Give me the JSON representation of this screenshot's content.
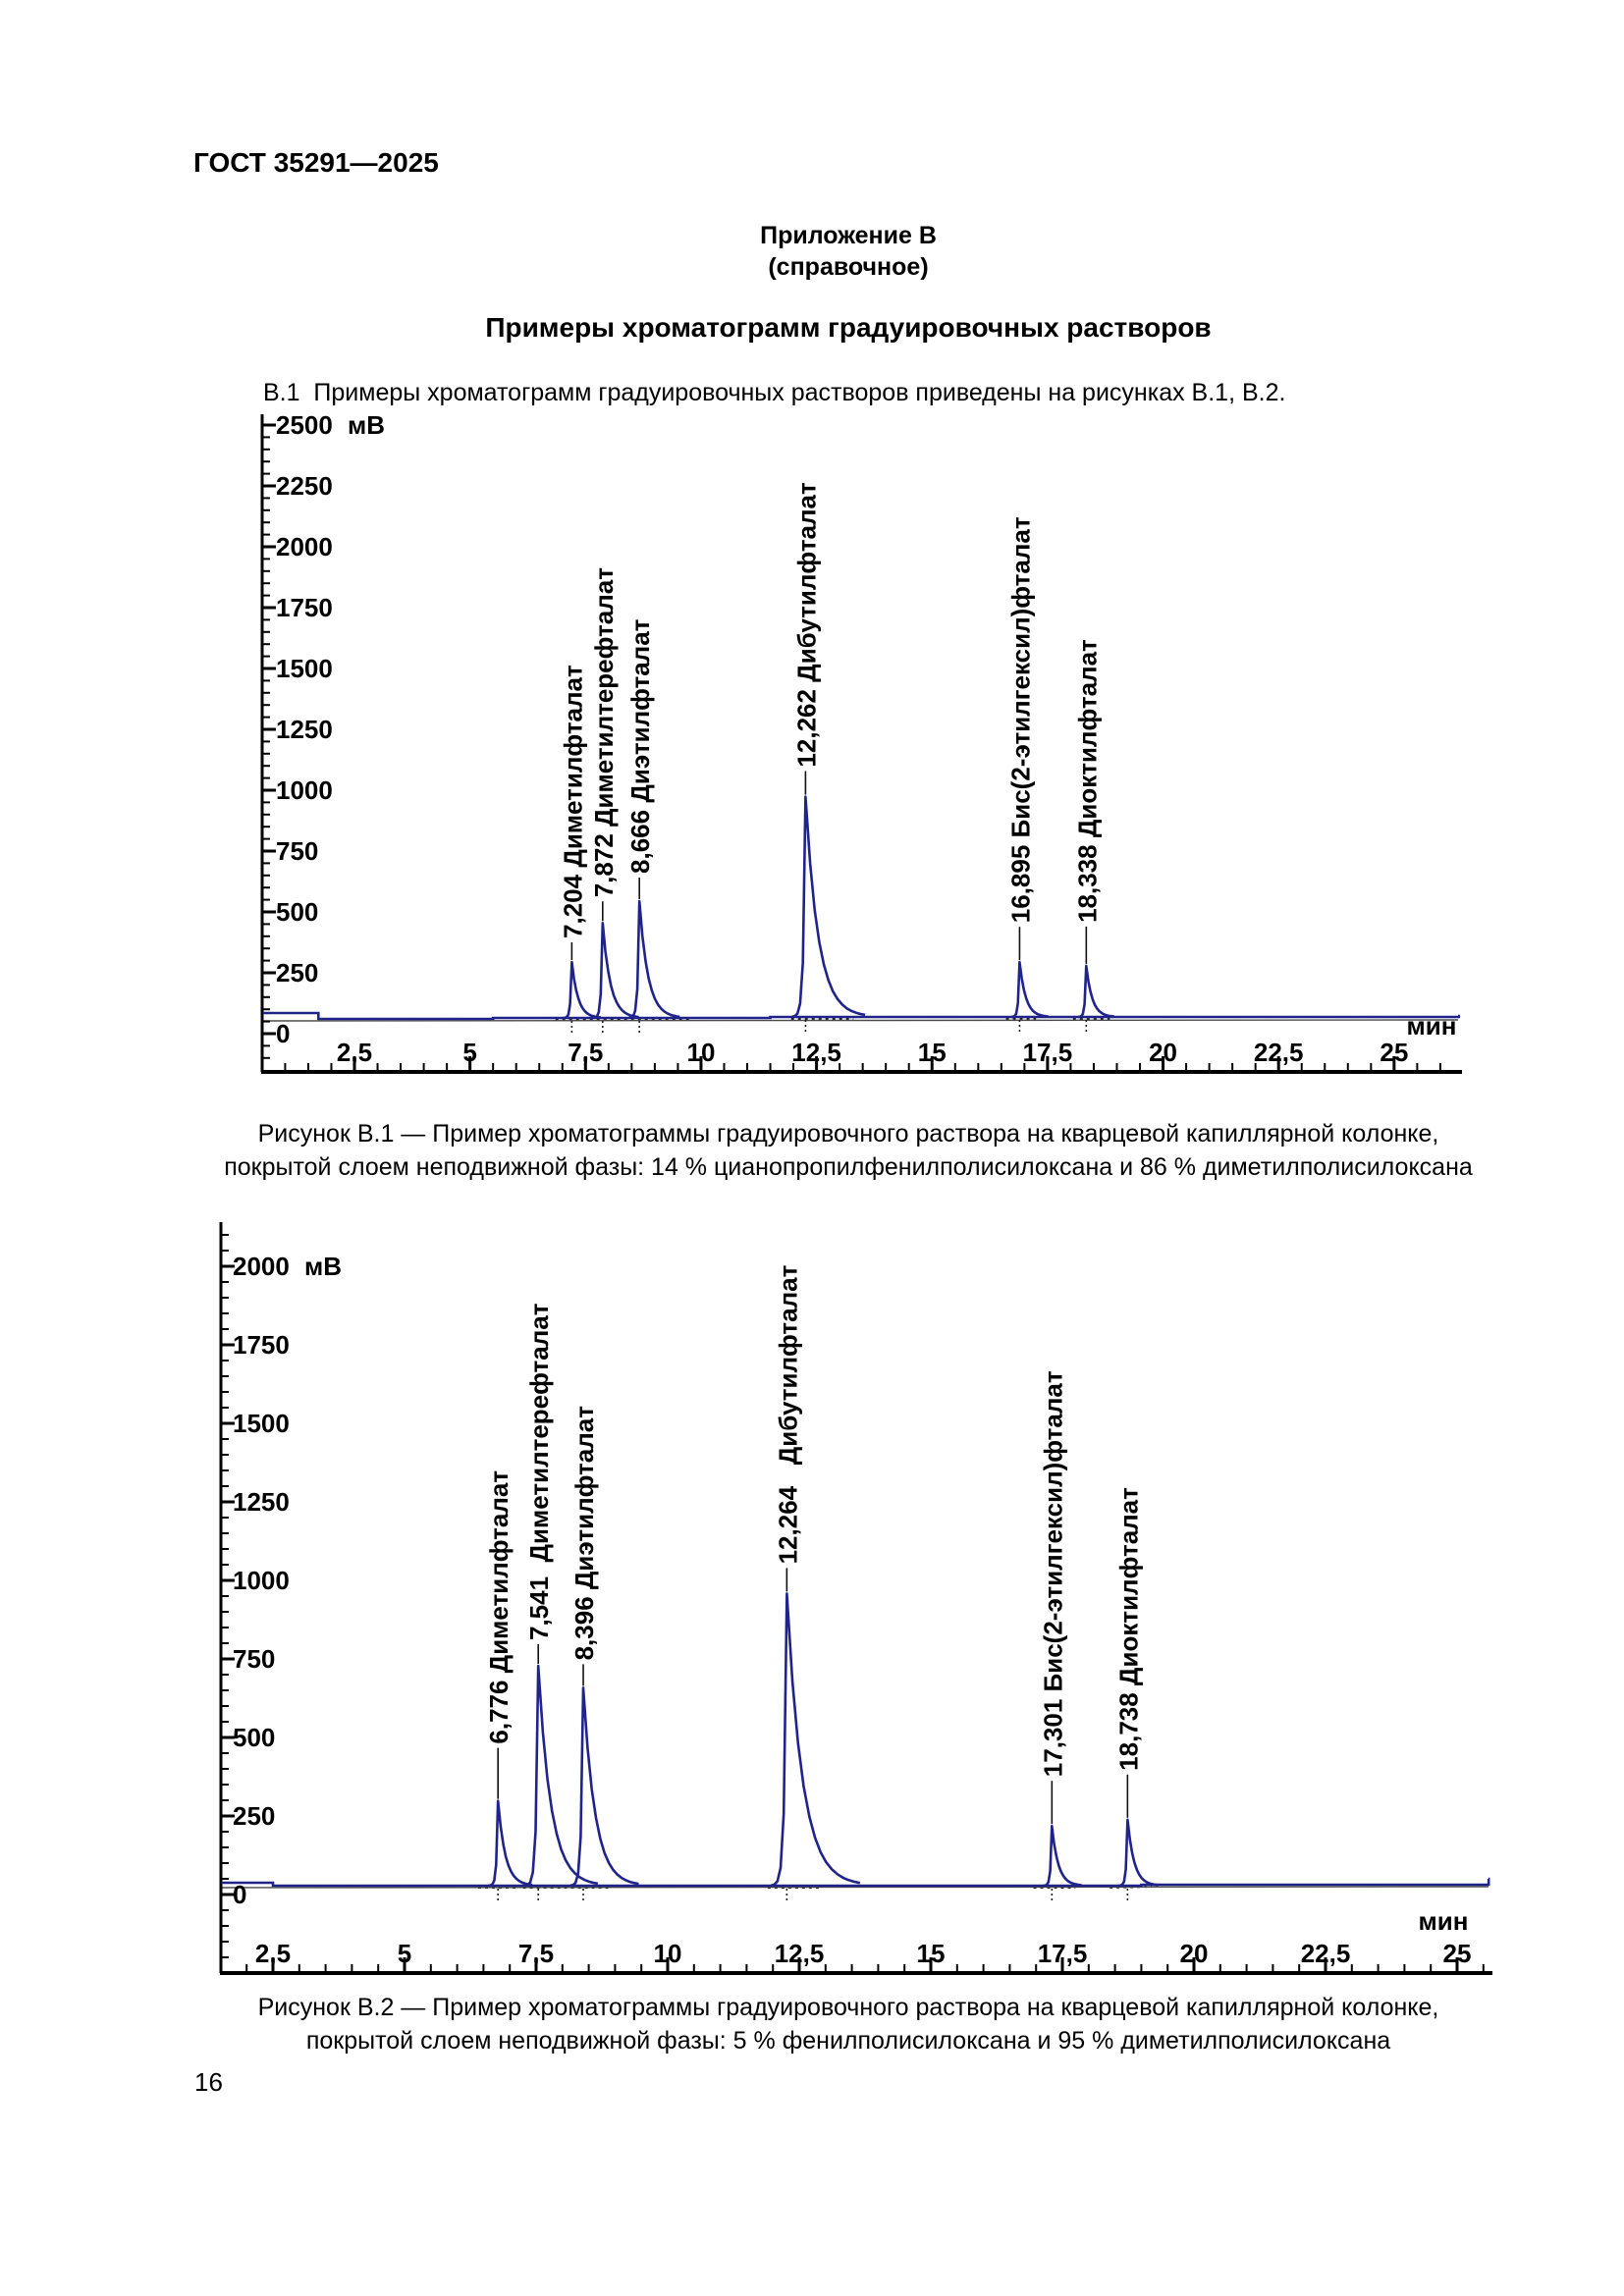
{
  "page": {
    "header": "ГОСТ 35291—2025",
    "appendix": {
      "title": "Приложение В",
      "subtitle": "(справочное)"
    },
    "section_title": "Примеры хроматограмм градуировочных растворов",
    "intro": "В.1  Примеры хроматограмм градуировочных растворов приведены на рисунках В.1, В.2.",
    "page_number": "16"
  },
  "colors": {
    "trace": "#20248a",
    "axis": "#000000",
    "baseline_gray": "#4a4a4a",
    "dotted": "#222222",
    "text": "#000000"
  },
  "chart_data": [
    {
      "id": "B.1",
      "type": "line",
      "xlabel": "мин",
      "ylabel": "мВ",
      "xlim": [
        0.5,
        26.5
      ],
      "ylim": [
        0,
        2600
      ],
      "grid": false,
      "x_major_ticks": [
        2.5,
        5,
        7.5,
        10,
        12.5,
        15,
        17.5,
        20,
        22.5,
        25
      ],
      "x_tick_labels": [
        "2,5",
        "5",
        "7,5",
        "10",
        "12,5",
        "15",
        "17,5",
        "20",
        "22,5",
        "25"
      ],
      "x_minor_step": 0.5,
      "y_major_ticks": [
        0,
        250,
        500,
        750,
        1000,
        1250,
        1500,
        1750,
        2000,
        2250,
        2500
      ],
      "y_tick_labels": [
        "0",
        "250",
        "500",
        "750",
        "1000",
        "1250",
        "1500",
        "1750",
        "2000",
        "2250",
        "2500"
      ],
      "y_minor_step": 50,
      "baseline_mV": 55,
      "peaks": [
        {
          "time": 7.204,
          "height_mV": 230,
          "label": "7,204 Диметилфталат"
        },
        {
          "time": 7.872,
          "height_mV": 390,
          "label": "7,872 Диметилтерефталат"
        },
        {
          "time": 8.666,
          "height_mV": 480,
          "label": "8,666 Диэтилфталат"
        },
        {
          "time": 12.262,
          "height_mV": 905,
          "label": "12,262 Дибутилфталат"
        },
        {
          "time": 16.895,
          "height_mV": 225,
          "label": "16,895 Бис(2-этилгексил)фталат"
        },
        {
          "time": 18.338,
          "height_mV": 210,
          "label": "18,338 Диоктилфталат"
        }
      ],
      "caption_lines": [
        "Рисунок В.1 — Пример хроматограммы градуировочного раствора на кварцевой капиллярной колонке,",
        "покрытой слоем неподвижной фазы: 14 % цианопропилфенилполисилоксана и 86 % диметилполисилоксана"
      ]
    },
    {
      "id": "B.2",
      "type": "line",
      "xlabel": "мин",
      "ylabel": "мВ",
      "xlim": [
        1.5,
        25.7
      ],
      "ylim": [
        0,
        2150
      ],
      "grid": false,
      "x_major_ticks": [
        2.5,
        5,
        7.5,
        10,
        12.5,
        15,
        17.5,
        20,
        22.5,
        25
      ],
      "x_tick_labels": [
        "2,5",
        "5",
        "7,5",
        "10",
        "12,5",
        "15",
        "17,5",
        "20",
        "22,5",
        "25"
      ],
      "x_minor_step": 0.5,
      "y_major_ticks": [
        0,
        250,
        500,
        750,
        1000,
        1250,
        1500,
        1750,
        2000
      ],
      "y_tick_labels": [
        "0",
        "250",
        "500",
        "750",
        "1000",
        "1250",
        "1500",
        "1750",
        "2000"
      ],
      "y_minor_step": 50,
      "baseline_mV": 30,
      "peaks": [
        {
          "time": 6.776,
          "height_mV": 270,
          "label": "6,776 Диметилфталат"
        },
        {
          "time": 7.541,
          "height_mV": 700,
          "label": "7,541  Диметилтерефталат"
        },
        {
          "time": 8.396,
          "height_mV": 630,
          "label": "8,396 Диэтилфталат"
        },
        {
          "time": 12.264,
          "height_mV": 930,
          "label": "12,264   Дибутилфталат"
        },
        {
          "time": 17.301,
          "height_mV": 190,
          "label": "17,301 Бис(2-этилгексил)фталат"
        },
        {
          "time": 18.738,
          "height_mV": 210,
          "label": "18,738 Диоктилфталат"
        }
      ],
      "caption_lines": [
        "Рисунок В.2 — Пример хроматограммы градуировочного раствора на кварцевой капиллярной колонке,",
        "покрытой слоем неподвижной фазы: 5 % фенилполисилоксана и 95 % диметилполисилоксана"
      ]
    }
  ]
}
